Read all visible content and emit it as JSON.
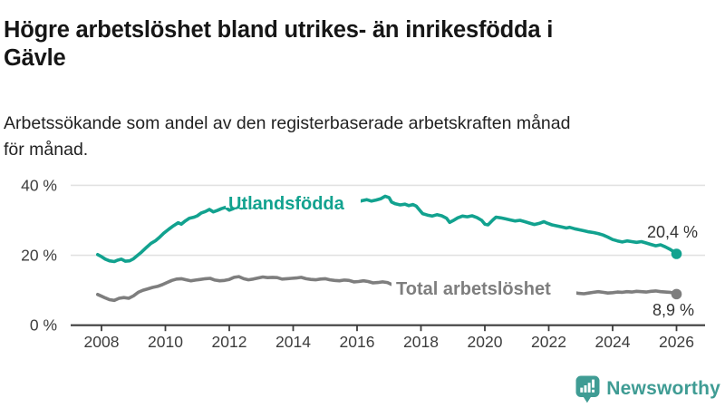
{
  "header": {
    "title": "Högre arbetslöshet bland utrikes- än inrikesfödda i\nGävle",
    "subtitle": "Arbetssökande som andel av den registerbaserade arbetskraften månad\nför månad."
  },
  "branding": {
    "logo_text": "Newsworthy",
    "logo_icon": "bar-chart-speech-bubble-icon",
    "logo_color": "#3f9c94"
  },
  "colors": {
    "series_foreign_born": "#12a28f",
    "series_total": "#7e7e7e",
    "grid": "#e1e1e1",
    "axis": "#3d3d3d",
    "tick_text": "#3d3d3d",
    "value_label_text": "#333333",
    "background": "#ffffff"
  },
  "chart_data": {
    "type": "line",
    "title": "Högre arbetslöshet bland utrikes- än inrikesfödda i Gävle",
    "subtitle": "Arbetssökande som andel av den registerbaserade arbetskraften månad för månad.",
    "xlabel": "",
    "ylabel": "",
    "y_unit": "%",
    "grid": "horizontal",
    "legend": "inline-labels",
    "ylim": [
      0,
      43
    ],
    "xlim": [
      2007.5,
      2026.9
    ],
    "y_ticks": {
      "values": [
        0,
        20,
        40
      ],
      "labels": [
        "0 %",
        "20 %",
        "40 %"
      ]
    },
    "x_ticks": {
      "values": [
        2008,
        2010,
        2012,
        2014,
        2016,
        2018,
        2020,
        2022,
        2024,
        2026
      ],
      "labels": [
        "2008",
        "2010",
        "2012",
        "2014",
        "2016",
        "2018",
        "2020",
        "2022",
        "2024",
        "2026"
      ]
    },
    "series": [
      {
        "name": "Utlandsfödda",
        "end_value": 20.4,
        "end_label": "20,4 %",
        "points": [
          [
            2007.88,
            20.2
          ],
          [
            2008.0,
            19.6
          ],
          [
            2008.12,
            18.9
          ],
          [
            2008.25,
            18.4
          ],
          [
            2008.4,
            18.2
          ],
          [
            2008.5,
            18.6
          ],
          [
            2008.62,
            18.9
          ],
          [
            2008.75,
            18.3
          ],
          [
            2008.88,
            18.4
          ],
          [
            2009.0,
            19.0
          ],
          [
            2009.12,
            19.9
          ],
          [
            2009.25,
            20.9
          ],
          [
            2009.4,
            22.2
          ],
          [
            2009.55,
            23.4
          ],
          [
            2009.7,
            24.2
          ],
          [
            2009.8,
            25.0
          ],
          [
            2009.95,
            26.3
          ],
          [
            2010.1,
            27.4
          ],
          [
            2010.25,
            28.4
          ],
          [
            2010.4,
            29.3
          ],
          [
            2010.5,
            28.9
          ],
          [
            2010.62,
            29.8
          ],
          [
            2010.75,
            30.6
          ],
          [
            2010.9,
            30.9
          ],
          [
            2011.0,
            31.3
          ],
          [
            2011.12,
            32.1
          ],
          [
            2011.25,
            32.5
          ],
          [
            2011.38,
            33.1
          ],
          [
            2011.5,
            32.4
          ],
          [
            2011.62,
            32.8
          ],
          [
            2011.75,
            33.3
          ],
          [
            2011.88,
            33.7
          ],
          [
            2012.0,
            32.9
          ],
          [
            2012.12,
            33.3
          ],
          [
            2012.25,
            34.0
          ],
          [
            2012.38,
            33.5
          ],
          [
            2012.5,
            33.8
          ],
          [
            2012.62,
            34.2
          ],
          [
            2012.75,
            33.8
          ],
          [
            2012.88,
            34.1
          ],
          [
            2013.0,
            33.8
          ],
          [
            2013.15,
            34.2
          ],
          [
            2013.3,
            34.5
          ],
          [
            2013.45,
            34.1
          ],
          [
            2013.6,
            34.4
          ],
          [
            2013.75,
            34.7
          ],
          [
            2013.9,
            34.3
          ],
          [
            2014.05,
            34.1
          ],
          [
            2014.2,
            34.5
          ],
          [
            2014.35,
            34.8
          ],
          [
            2014.5,
            34.4
          ],
          [
            2014.65,
            34.7
          ],
          [
            2014.8,
            34.9
          ],
          [
            2014.95,
            34.5
          ],
          [
            2015.1,
            34.8
          ],
          [
            2015.25,
            35.1
          ],
          [
            2015.4,
            34.7
          ],
          [
            2015.55,
            35.0
          ],
          [
            2015.7,
            35.2
          ],
          [
            2015.85,
            34.9
          ],
          [
            2016.0,
            35.2
          ],
          [
            2016.15,
            35.6
          ],
          [
            2016.3,
            35.9
          ],
          [
            2016.45,
            35.5
          ],
          [
            2016.6,
            35.8
          ],
          [
            2016.75,
            36.2
          ],
          [
            2016.88,
            36.9
          ],
          [
            2017.0,
            36.5
          ],
          [
            2017.08,
            35.2
          ],
          [
            2017.2,
            34.7
          ],
          [
            2017.35,
            34.4
          ],
          [
            2017.5,
            34.6
          ],
          [
            2017.62,
            34.2
          ],
          [
            2017.75,
            34.5
          ],
          [
            2017.85,
            34.1
          ],
          [
            2017.95,
            33.0
          ],
          [
            2018.05,
            31.9
          ],
          [
            2018.2,
            31.5
          ],
          [
            2018.35,
            31.2
          ],
          [
            2018.5,
            31.6
          ],
          [
            2018.65,
            31.3
          ],
          [
            2018.8,
            30.6
          ],
          [
            2018.9,
            29.4
          ],
          [
            2019.0,
            29.9
          ],
          [
            2019.15,
            30.7
          ],
          [
            2019.3,
            31.2
          ],
          [
            2019.45,
            31.0
          ],
          [
            2019.6,
            31.3
          ],
          [
            2019.75,
            30.8
          ],
          [
            2019.9,
            30.0
          ],
          [
            2020.0,
            28.9
          ],
          [
            2020.1,
            28.7
          ],
          [
            2020.25,
            30.1
          ],
          [
            2020.35,
            30.9
          ],
          [
            2020.5,
            30.7
          ],
          [
            2020.65,
            30.4
          ],
          [
            2020.8,
            30.1
          ],
          [
            2020.95,
            29.8
          ],
          [
            2021.1,
            30.0
          ],
          [
            2021.25,
            29.6
          ],
          [
            2021.4,
            29.2
          ],
          [
            2021.55,
            28.8
          ],
          [
            2021.7,
            29.1
          ],
          [
            2021.85,
            29.6
          ],
          [
            2021.95,
            29.2
          ],
          [
            2022.1,
            28.7
          ],
          [
            2022.25,
            28.4
          ],
          [
            2022.4,
            28.1
          ],
          [
            2022.55,
            27.8
          ],
          [
            2022.65,
            28.0
          ],
          [
            2022.8,
            27.6
          ],
          [
            2022.95,
            27.3
          ],
          [
            2023.1,
            27.0
          ],
          [
            2023.25,
            26.7
          ],
          [
            2023.4,
            26.5
          ],
          [
            2023.55,
            26.2
          ],
          [
            2023.7,
            25.8
          ],
          [
            2023.85,
            25.2
          ],
          [
            2024.0,
            24.5
          ],
          [
            2024.15,
            24.1
          ],
          [
            2024.3,
            23.8
          ],
          [
            2024.45,
            24.1
          ],
          [
            2024.6,
            23.9
          ],
          [
            2024.75,
            23.7
          ],
          [
            2024.9,
            23.9
          ],
          [
            2025.05,
            23.5
          ],
          [
            2025.2,
            23.1
          ],
          [
            2025.35,
            22.7
          ],
          [
            2025.5,
            23.0
          ],
          [
            2025.65,
            22.4
          ],
          [
            2025.8,
            21.7
          ],
          [
            2025.9,
            21.1
          ],
          [
            2026.0,
            20.4
          ]
        ]
      },
      {
        "name": "Total arbetslöshet",
        "end_value": 8.9,
        "end_label": "8,9 %",
        "points": [
          [
            2007.88,
            8.8
          ],
          [
            2008.0,
            8.3
          ],
          [
            2008.12,
            7.8
          ],
          [
            2008.25,
            7.3
          ],
          [
            2008.4,
            7.1
          ],
          [
            2008.55,
            7.7
          ],
          [
            2008.7,
            7.9
          ],
          [
            2008.85,
            7.7
          ],
          [
            2009.0,
            8.4
          ],
          [
            2009.15,
            9.4
          ],
          [
            2009.3,
            10.0
          ],
          [
            2009.45,
            10.4
          ],
          [
            2009.6,
            10.8
          ],
          [
            2009.75,
            11.1
          ],
          [
            2009.9,
            11.6
          ],
          [
            2010.05,
            12.2
          ],
          [
            2010.2,
            12.8
          ],
          [
            2010.35,
            13.2
          ],
          [
            2010.5,
            13.3
          ],
          [
            2010.65,
            13.0
          ],
          [
            2010.8,
            12.7
          ],
          [
            2010.95,
            12.9
          ],
          [
            2011.1,
            13.1
          ],
          [
            2011.25,
            13.3
          ],
          [
            2011.4,
            13.4
          ],
          [
            2011.55,
            12.9
          ],
          [
            2011.7,
            12.7
          ],
          [
            2011.85,
            12.8
          ],
          [
            2012.0,
            13.1
          ],
          [
            2012.15,
            13.7
          ],
          [
            2012.3,
            13.9
          ],
          [
            2012.45,
            13.3
          ],
          [
            2012.6,
            13.0
          ],
          [
            2012.75,
            13.2
          ],
          [
            2012.9,
            13.5
          ],
          [
            2013.05,
            13.8
          ],
          [
            2013.2,
            13.6
          ],
          [
            2013.35,
            13.7
          ],
          [
            2013.5,
            13.6
          ],
          [
            2013.65,
            13.2
          ],
          [
            2013.8,
            13.3
          ],
          [
            2013.95,
            13.4
          ],
          [
            2014.1,
            13.5
          ],
          [
            2014.25,
            13.7
          ],
          [
            2014.4,
            13.3
          ],
          [
            2014.55,
            13.1
          ],
          [
            2014.7,
            13.0
          ],
          [
            2014.85,
            13.2
          ],
          [
            2015.0,
            13.3
          ],
          [
            2015.15,
            13.0
          ],
          [
            2015.3,
            12.8
          ],
          [
            2015.45,
            12.7
          ],
          [
            2015.6,
            12.9
          ],
          [
            2015.75,
            12.8
          ],
          [
            2015.9,
            12.4
          ],
          [
            2016.05,
            12.5
          ],
          [
            2016.2,
            12.7
          ],
          [
            2016.35,
            12.5
          ],
          [
            2016.5,
            12.1
          ],
          [
            2016.65,
            12.2
          ],
          [
            2016.8,
            12.4
          ],
          [
            2016.95,
            12.2
          ],
          [
            2017.1,
            11.6
          ],
          [
            2017.25,
            11.4
          ],
          [
            2017.45,
            11.1
          ],
          [
            2017.65,
            10.9
          ],
          [
            2017.85,
            10.7
          ],
          [
            2018.05,
            10.5
          ],
          [
            2018.25,
            10.4
          ],
          [
            2018.45,
            10.3
          ],
          [
            2018.65,
            10.1
          ],
          [
            2018.85,
            10.0
          ],
          [
            2019.05,
            9.9
          ],
          [
            2019.25,
            9.8
          ],
          [
            2019.45,
            9.8
          ],
          [
            2019.65,
            9.9
          ],
          [
            2019.85,
            10.0
          ],
          [
            2020.05,
            10.3
          ],
          [
            2020.25,
            10.6
          ],
          [
            2020.45,
            10.8
          ],
          [
            2020.65,
            10.7
          ],
          [
            2020.85,
            10.5
          ],
          [
            2021.05,
            10.3
          ],
          [
            2021.25,
            10.2
          ],
          [
            2021.45,
            10.0
          ],
          [
            2021.65,
            9.9
          ],
          [
            2021.85,
            9.8
          ],
          [
            2022.05,
            9.7
          ],
          [
            2022.25,
            9.6
          ],
          [
            2022.45,
            9.5
          ],
          [
            2022.65,
            9.4
          ],
          [
            2022.8,
            9.3
          ],
          [
            2022.95,
            9.1
          ],
          [
            2023.1,
            9.0
          ],
          [
            2023.25,
            9.2
          ],
          [
            2023.4,
            9.4
          ],
          [
            2023.55,
            9.6
          ],
          [
            2023.7,
            9.4
          ],
          [
            2023.85,
            9.2
          ],
          [
            2024.0,
            9.3
          ],
          [
            2024.15,
            9.5
          ],
          [
            2024.3,
            9.4
          ],
          [
            2024.45,
            9.6
          ],
          [
            2024.6,
            9.5
          ],
          [
            2024.75,
            9.7
          ],
          [
            2024.9,
            9.6
          ],
          [
            2025.05,
            9.5
          ],
          [
            2025.2,
            9.7
          ],
          [
            2025.35,
            9.8
          ],
          [
            2025.5,
            9.6
          ],
          [
            2025.65,
            9.5
          ],
          [
            2025.8,
            9.4
          ],
          [
            2025.9,
            9.2
          ],
          [
            2026.0,
            8.9
          ]
        ]
      }
    ]
  }
}
